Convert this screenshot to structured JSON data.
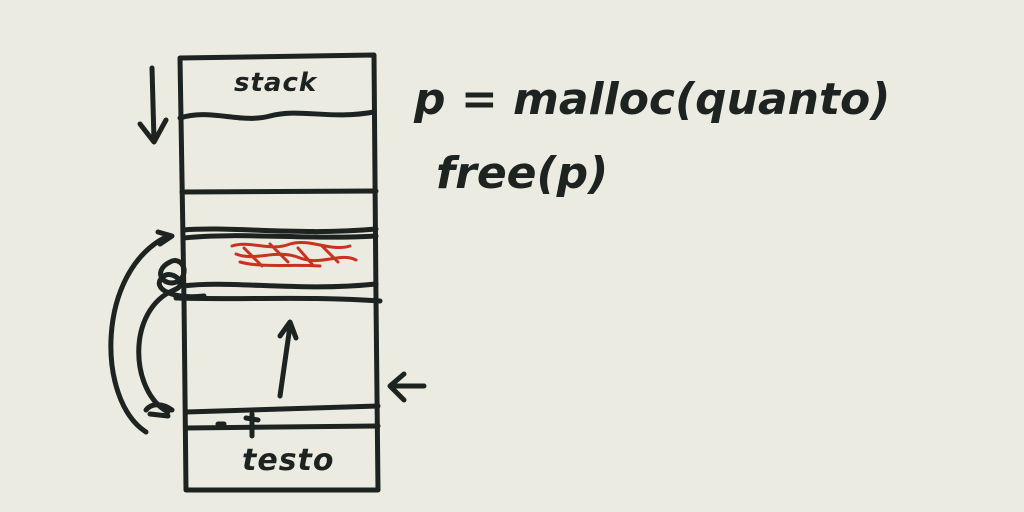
{
  "diagram": {
    "segments": {
      "stack_label": "stack",
      "text_label": "testo"
    },
    "code": {
      "malloc_line": "p = malloc(quanto)",
      "free_line": "free(p)"
    },
    "colors": {
      "ink": "#1c2320",
      "highlight": "#c8321e",
      "background": "#ecebe2"
    },
    "icons": {
      "stack_growth": "arrow-down-icon",
      "heap_growth": "arrow-up-icon",
      "break_pointer": "arrow-left-icon",
      "allocation_link": "curved-arrow-icon"
    }
  }
}
